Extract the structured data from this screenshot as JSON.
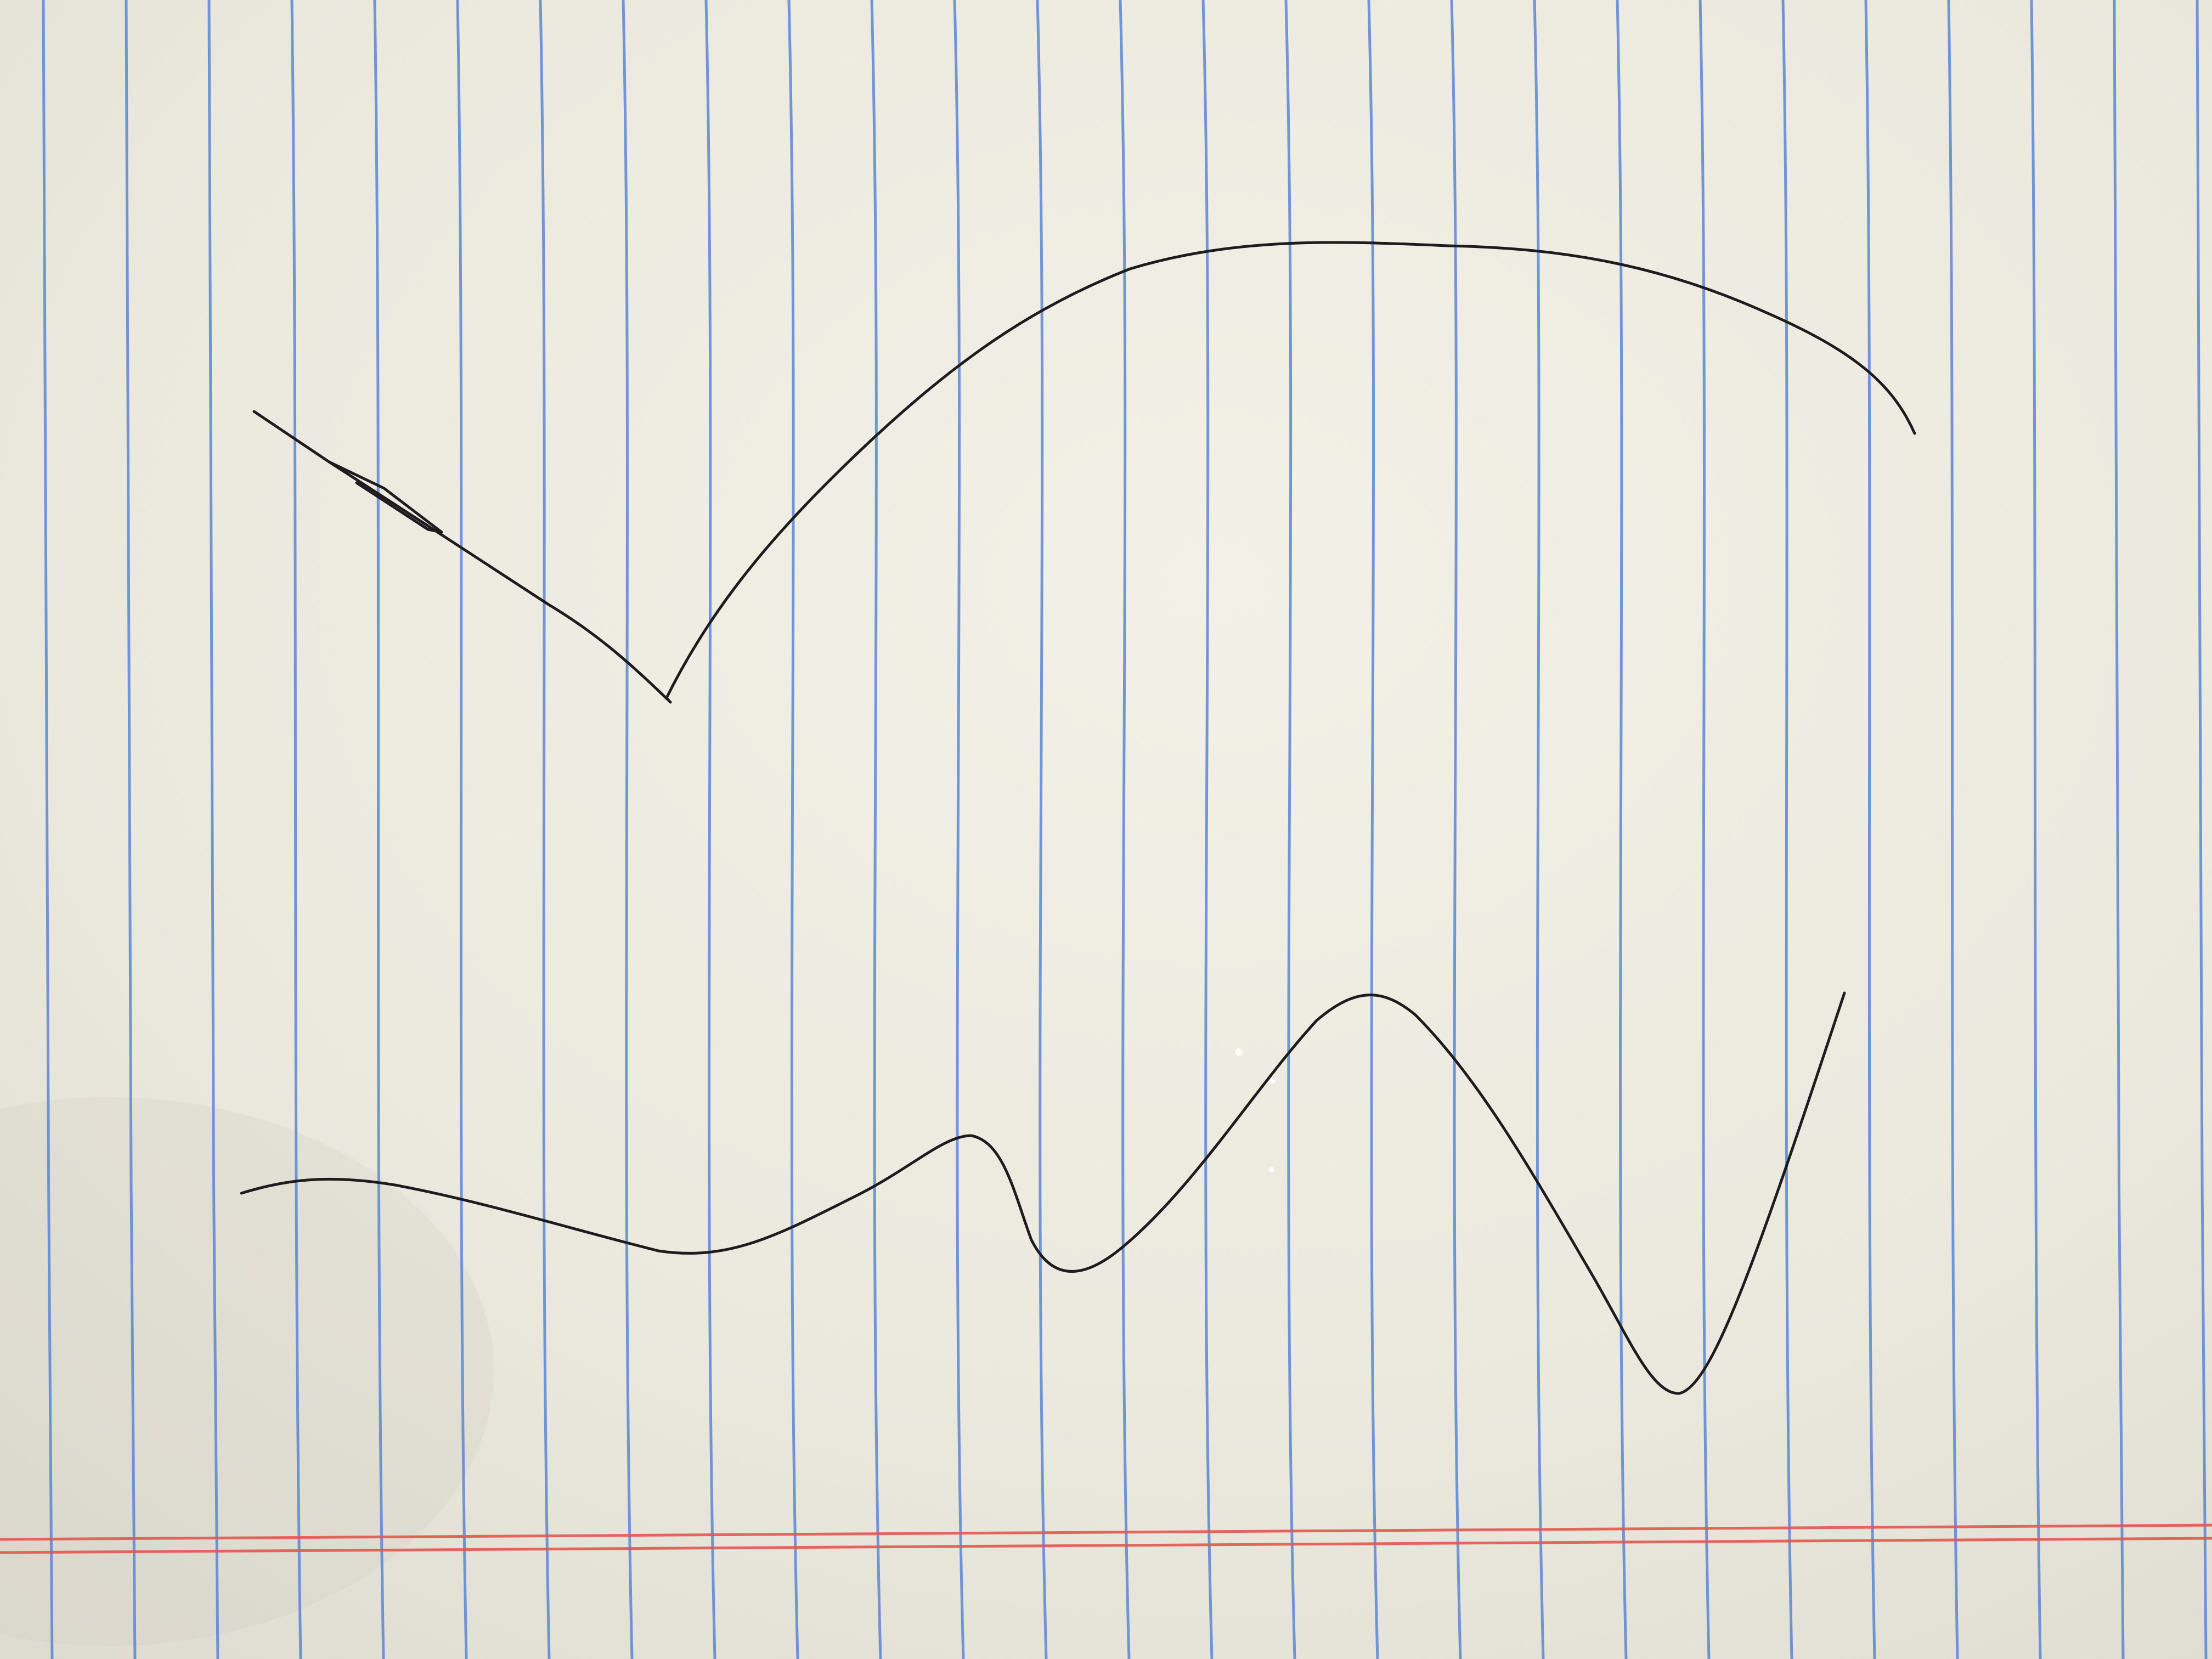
{
  "scene": {
    "subject": "lined-notebook-paper",
    "orientation": "rotated-90-degrees",
    "paper_color": "#efede2",
    "rule_line_color": "#5b86d4",
    "margin_line_color": "#e2564f",
    "ink_color": "#1e1c1f",
    "rule_line_count": 27,
    "margin_line_count": 2,
    "drawn_curve_count": 2
  }
}
